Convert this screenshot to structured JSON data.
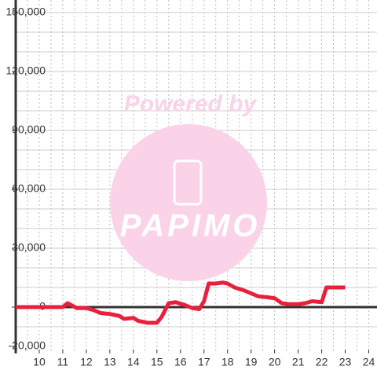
{
  "chart_data": {
    "type": "line",
    "watermark": {
      "title": "Powered by",
      "logo": "PAPIMO"
    },
    "x": [
      9,
      11,
      11.2,
      11.6,
      12,
      12.3,
      12.6,
      13,
      13.4,
      13.6,
      14,
      14.2,
      14.6,
      15,
      15.2,
      15.5,
      15.8,
      16.2,
      16.5,
      16.8,
      17,
      17.2,
      17.5,
      17.8,
      18,
      18.3,
      18.7,
      19,
      19.3,
      19.7,
      20,
      20.3,
      20.6,
      21,
      21.3,
      21.6,
      22,
      22.2,
      22.5,
      23
    ],
    "series": [
      {
        "color": "#e8203c",
        "values": [
          0,
          0,
          2000,
          -500,
          -500,
          -1500,
          -3000,
          -3500,
          -4500,
          -6000,
          -5500,
          -7000,
          -8000,
          -8000,
          -5000,
          2000,
          2500,
          1000,
          -500,
          -1000,
          3000,
          12000,
          12000,
          12500,
          12000,
          10000,
          8500,
          7000,
          5500,
          5000,
          4500,
          2000,
          1500,
          1500,
          2000,
          3000,
          2500,
          10000,
          10000,
          10000
        ]
      }
    ],
    "xlim": [
      9,
      24.35
    ],
    "xticks": [
      10,
      11,
      12,
      13,
      14,
      15,
      16,
      17,
      18,
      19,
      20,
      21,
      22,
      23,
      24
    ],
    "xgrid": [
      9.5,
      10,
      10.5,
      11,
      11.5,
      12,
      12.5,
      13,
      13.5,
      14,
      14.5,
      15,
      15.5,
      16,
      16.5,
      17,
      17.5,
      18,
      18.5,
      19,
      19.5,
      20,
      20.5,
      21,
      21.5,
      22,
      22.5,
      23,
      23.5,
      24
    ],
    "ylim": [
      -20000,
      150000
    ],
    "yticks": [
      {
        "value": 150000,
        "label": "150,000"
      },
      {
        "value": 120000,
        "label": "120,000"
      },
      {
        "value": 90000,
        "label": "90,000"
      },
      {
        "value": 60000,
        "label": "60,000"
      },
      {
        "value": 30000,
        "label": "30,000"
      },
      0,
      {
        "value": -20000,
        "label": "-20,000"
      }
    ],
    "ygrid": [
      -10000,
      10000,
      20000,
      30000,
      40000,
      50000,
      60000,
      70000,
      80000,
      90000,
      100000,
      110000,
      120000,
      130000,
      140000,
      150000
    ]
  }
}
